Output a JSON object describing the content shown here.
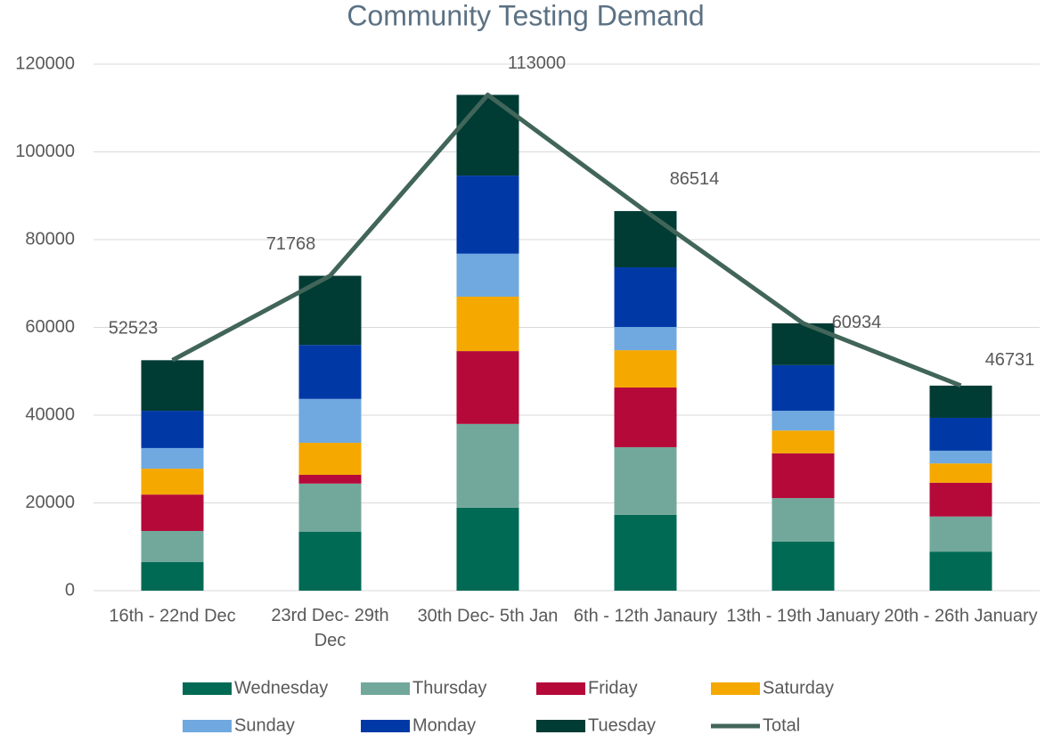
{
  "chart_data": {
    "type": "bar",
    "stacked": true,
    "title": "Community Testing Demand",
    "categories": [
      "16th - 22nd Dec",
      "23rd Dec- 29th Dec",
      "30th Dec- 5th Jan",
      "6th - 12th Janaury",
      "13th - 19th January",
      "20th - 26th January"
    ],
    "series": [
      {
        "name": "Wednesday",
        "color": "#006a55",
        "values": [
          6500,
          13400,
          18900,
          17300,
          11200,
          8900
        ]
      },
      {
        "name": "Thursday",
        "color": "#72a89b",
        "values": [
          7100,
          11000,
          19100,
          15400,
          9900,
          8000
        ]
      },
      {
        "name": "Friday",
        "color": "#b5093a",
        "values": [
          8300,
          2000,
          16600,
          13600,
          10200,
          7700
        ]
      },
      {
        "name": "Saturday",
        "color": "#f5a800",
        "values": [
          5900,
          7300,
          12400,
          8500,
          5200,
          4400
        ]
      },
      {
        "name": "Sunday",
        "color": "#6fa9e0",
        "values": [
          4700,
          10000,
          9800,
          5300,
          4500,
          2900
        ]
      },
      {
        "name": "Monday",
        "color": "#0039a6",
        "values": [
          8500,
          12300,
          17800,
          13600,
          10400,
          7500
        ]
      },
      {
        "name": "Tuesday",
        "color": "#003b34",
        "values": [
          11523,
          15768,
          18400,
          12814,
          9534,
          7331
        ]
      },
      {
        "name": "Total",
        "type": "line",
        "color": "#416559",
        "values": [
          52523,
          71768,
          113000,
          86514,
          60934,
          46731
        ]
      }
    ],
    "ylim": [
      0,
      120000
    ],
    "yticks": [
      0,
      20000,
      40000,
      60000,
      80000,
      100000,
      120000
    ],
    "grid": true,
    "legend": "bottom"
  }
}
